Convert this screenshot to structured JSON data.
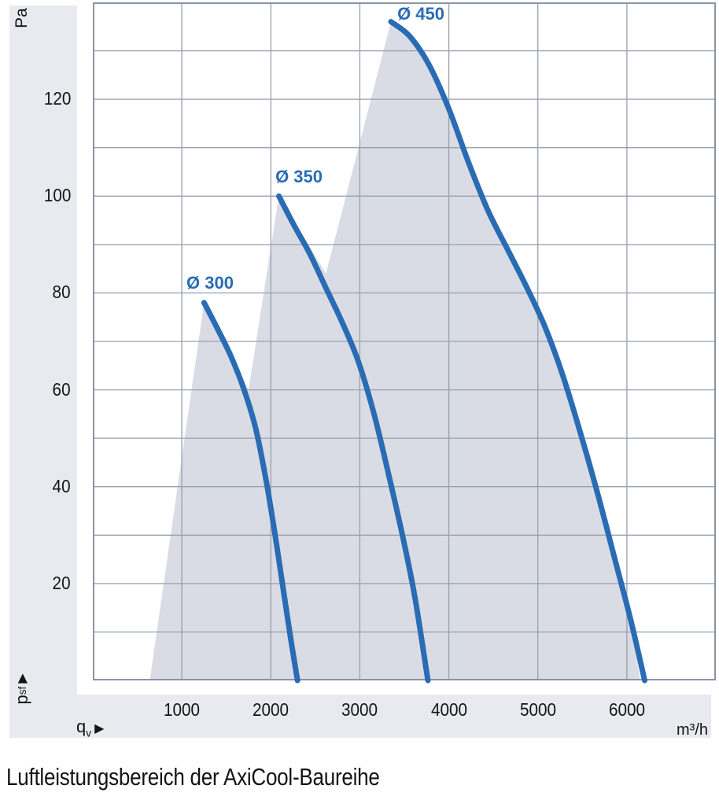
{
  "title": "Luftleistungsbereich der AxiCool-Baureihe",
  "axes": {
    "y_unit": "Pa",
    "y_symbol": "p",
    "y_symbol_sub": "sf",
    "x_symbol": "q",
    "x_symbol_sub": "v",
    "arrow": "▶",
    "x_unit": "m³/h"
  },
  "colors": {
    "accent": "#2a6cb4",
    "band": "#e8eaef",
    "region": "#d9dce4",
    "grid": "#97a0ae",
    "frame": "#8b94a4",
    "ink": "#141414"
  },
  "chart_data": {
    "type": "area",
    "title": "Luftleistungsbereich der AxiCool-Baureihe",
    "xlabel": "qv",
    "x_unit": "m³/h",
    "ylabel": "psf",
    "y_unit": "Pa",
    "xlim": [
      0,
      7000
    ],
    "ylim": [
      0,
      140
    ],
    "x_grid_step": 1000,
    "y_grid_step": 10,
    "grid": true,
    "x_ticks": [
      1000,
      2000,
      3000,
      4000,
      5000,
      6000
    ],
    "y_ticks": [
      20,
      40,
      60,
      80,
      100,
      120
    ],
    "legend_position": "labels-on-curves",
    "series": [
      {
        "name": "Ø 300",
        "label_anchor": [
          1317,
          82
        ],
        "points": [
          [
            1250,
            78
          ],
          [
            1390,
            73
          ],
          [
            1550,
            67
          ],
          [
            1700,
            60
          ],
          [
            1830,
            52
          ],
          [
            1940,
            42
          ],
          [
            2040,
            31
          ],
          [
            2130,
            20
          ],
          [
            2220,
            9
          ],
          [
            2300,
            0
          ]
        ]
      },
      {
        "name": "Ø 350",
        "label_anchor": [
          2316,
          104
        ],
        "points": [
          [
            2090,
            100
          ],
          [
            2260,
            94
          ],
          [
            2440,
            88
          ],
          [
            2620,
            81
          ],
          [
            2800,
            74
          ],
          [
            2980,
            66
          ],
          [
            3160,
            55
          ],
          [
            3330,
            42
          ],
          [
            3490,
            29
          ],
          [
            3620,
            17
          ],
          [
            3765,
            0
          ]
        ]
      },
      {
        "name": "Ø 450",
        "label_anchor": [
          3686,
          137.5
        ],
        "points": [
          [
            3350,
            136
          ],
          [
            3560,
            133
          ],
          [
            3780,
            127
          ],
          [
            4000,
            118
          ],
          [
            4220,
            107
          ],
          [
            4440,
            97
          ],
          [
            4660,
            89
          ],
          [
            4880,
            81
          ],
          [
            5080,
            73
          ],
          [
            5280,
            63
          ],
          [
            5480,
            51
          ],
          [
            5680,
            38
          ],
          [
            5880,
            24
          ],
          [
            6050,
            12
          ],
          [
            6200,
            0
          ]
        ]
      }
    ],
    "operating_envelope": [
      [
        640,
        0
      ],
      [
        1250,
        78
      ],
      [
        1750,
        60
      ],
      [
        2090,
        100
      ],
      [
        2620,
        84
      ],
      [
        3350,
        136
      ],
      [
        3560,
        133
      ],
      [
        3780,
        127
      ],
      [
        4000,
        118
      ],
      [
        4220,
        107
      ],
      [
        4440,
        97
      ],
      [
        4660,
        89
      ],
      [
        4880,
        81
      ],
      [
        5080,
        73
      ],
      [
        5280,
        63
      ],
      [
        5480,
        51
      ],
      [
        5680,
        38
      ],
      [
        5880,
        24
      ],
      [
        6050,
        12
      ],
      [
        6150,
        0
      ]
    ]
  }
}
